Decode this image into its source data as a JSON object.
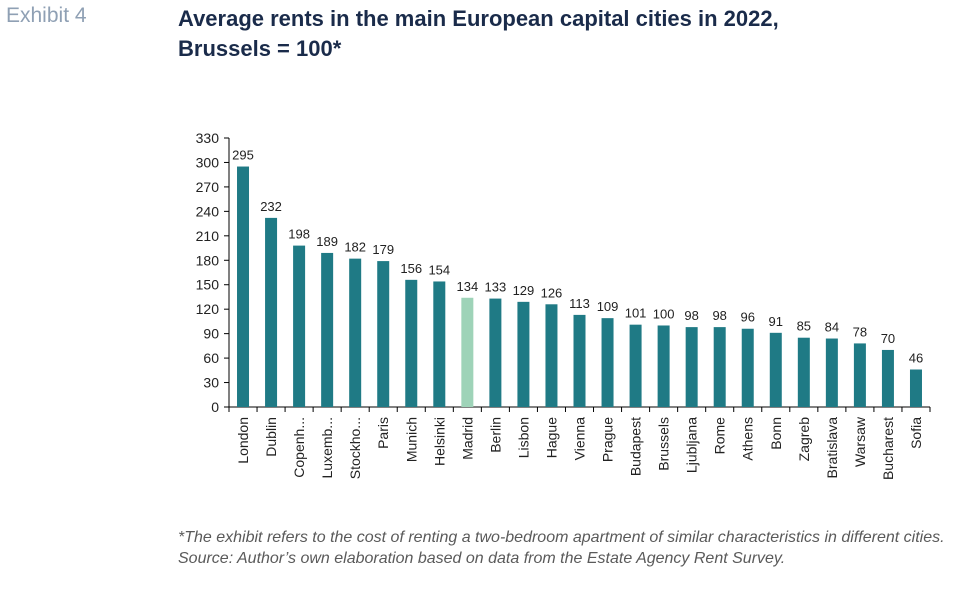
{
  "exhibit_label": "Exhibit 4",
  "title_line1": "Average rents in the main European capital cities in 2022,",
  "title_line2": "Brussels = 100*",
  "footnote": "*The exhibit  refers to the cost of renting a two-bedroom apartment of similar characteristics in different cities.",
  "source": "Source: Author’s own elaboration based on data from the Estate Agency Rent Survey.",
  "colors": {
    "bar": "#1f7a85",
    "highlight": "#9ed3b8",
    "axis": "#000000",
    "text": "#222222"
  },
  "chart_data": {
    "type": "bar",
    "title": "Average rents in the main European capital cities in 2022, Brussels = 100*",
    "categories": [
      "London",
      "Dublin",
      "Copenh...",
      "Luxemb...",
      "Stockho...",
      "Paris",
      "Munich",
      "Helsinki",
      "Madrid",
      "Berlin",
      "Lisbon",
      "Hague",
      "Vienna",
      "Prague",
      "Budapest",
      "Brussels",
      "Ljubljana",
      "Rome",
      "Athens",
      "Bonn",
      "Zagreb",
      "Bratislava",
      "Warsaw",
      "Bucharest",
      "Sofia"
    ],
    "values": [
      295,
      232,
      198,
      189,
      182,
      179,
      156,
      154,
      134,
      133,
      129,
      126,
      113,
      109,
      101,
      100,
      98,
      98,
      96,
      91,
      85,
      84,
      78,
      70,
      46
    ],
    "highlight": "Madrid",
    "ylim": [
      0,
      330
    ],
    "yticks": [
      0,
      30,
      60,
      90,
      120,
      150,
      180,
      210,
      240,
      270,
      300,
      330
    ],
    "data_labels": true,
    "grid": false,
    "legend": "none"
  }
}
